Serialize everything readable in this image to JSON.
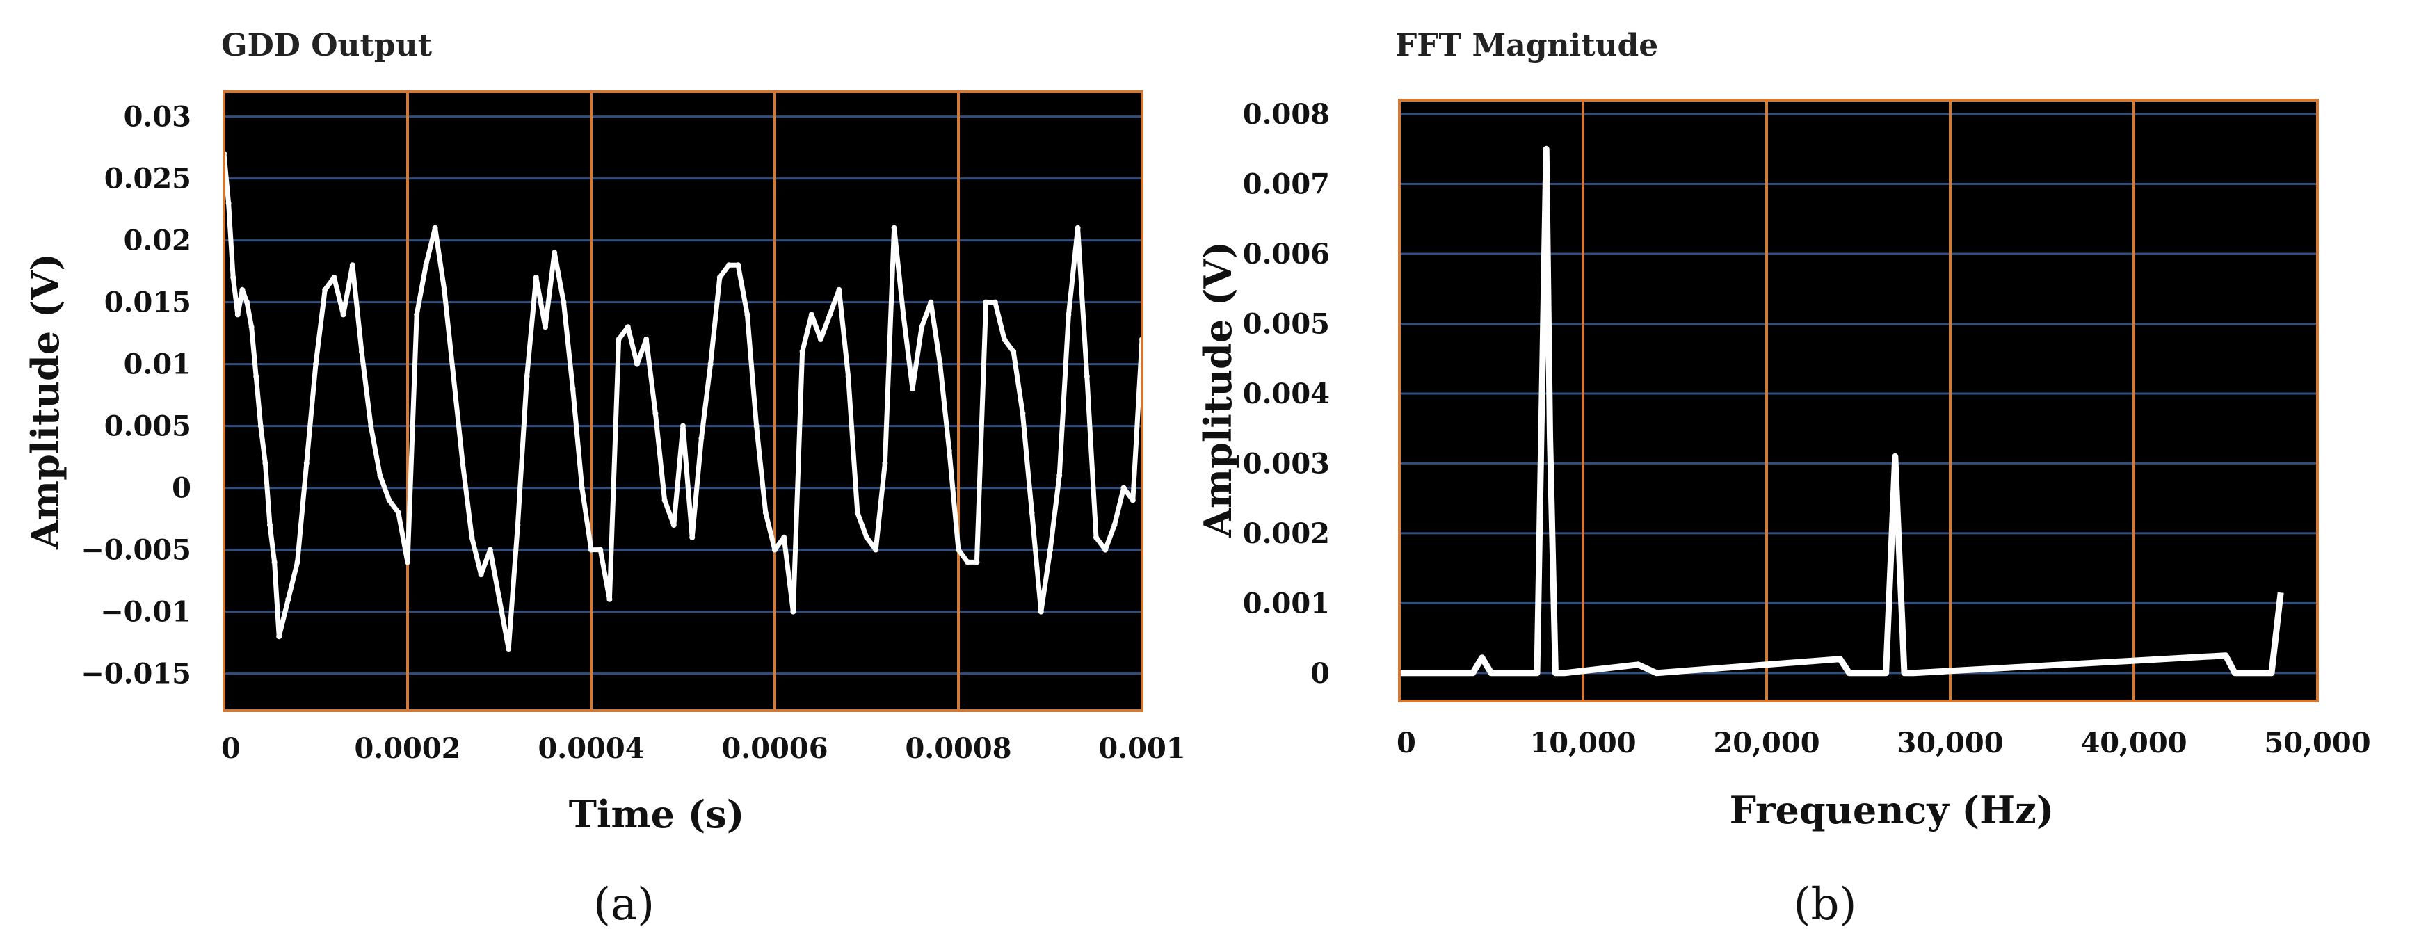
{
  "colors": {
    "background": "#000000",
    "grid": "#2f4f80",
    "frame": "#d07a3a",
    "trace": "#ffffff"
  },
  "chart_data": [
    {
      "type": "line",
      "caption": "(a)",
      "title": "GDD Output",
      "xlabel": "Time (s)",
      "ylabel": "Amplitude (V)",
      "xlim": [
        0,
        0.001
      ],
      "ylim": [
        -0.018,
        0.032
      ],
      "xticks": [
        0,
        0.0002,
        0.0004,
        0.0006,
        0.0008,
        0.001
      ],
      "xtick_labels": [
        "0",
        "0.0002",
        "0.0004",
        "0.0006",
        "0.0008",
        "0.001"
      ],
      "yticks": [
        0.03,
        0.025,
        0.02,
        0.015,
        0.01,
        0.005,
        0,
        -0.005,
        -0.01,
        -0.015
      ],
      "ytick_labels": [
        "0.03",
        "0.025",
        "0.02",
        "0.015",
        "0.01",
        "0.005",
        "0",
        "−0.005",
        "−0.01",
        "−0.015"
      ],
      "grid": true,
      "series": [
        {
          "x": [
            0,
            5e-06,
            1e-05,
            1.5e-05,
            2e-05,
            2.5e-05,
            3e-05,
            3.5e-05,
            4e-05,
            4.5e-05,
            5e-05,
            5.5e-05,
            6e-05,
            7e-05,
            8e-05,
            9e-05,
            0.0001,
            0.00011,
            0.00012,
            0.00013,
            0.00014,
            0.00015,
            0.00016,
            0.00017,
            0.00018,
            0.00019,
            0.0002,
            0.00021,
            0.00022,
            0.00023,
            0.00024,
            0.00025,
            0.00026,
            0.00027,
            0.00028,
            0.00029,
            0.0003,
            0.00031,
            0.00032,
            0.00033,
            0.00034,
            0.00035,
            0.00036,
            0.00037,
            0.00038,
            0.00039,
            0.0004,
            0.00041,
            0.00042,
            0.00043,
            0.00044,
            0.00045,
            0.00046,
            0.00047,
            0.00048,
            0.00049,
            0.0005,
            0.00051,
            0.00052,
            0.00053,
            0.00054,
            0.00055,
            0.00056,
            0.00057,
            0.00058,
            0.00059,
            0.0006,
            0.00061,
            0.00062,
            0.00063,
            0.00064,
            0.00065,
            0.00066,
            0.00067,
            0.00068,
            0.00069,
            0.0007,
            0.00071,
            0.00072,
            0.00073,
            0.00074,
            0.00075,
            0.00076,
            0.00077,
            0.00078,
            0.00079,
            0.0008,
            0.00081,
            0.00082,
            0.00083,
            0.00084,
            0.00085,
            0.00086,
            0.00087,
            0.00088,
            0.00089,
            0.0009,
            0.00091,
            0.00092,
            0.00093,
            0.00094,
            0.00095,
            0.00096,
            0.00097,
            0.00098,
            0.00099,
            0.001
          ],
          "y": [
            0.027,
            0.023,
            0.017,
            0.014,
            0.016,
            0.015,
            0.013,
            0.009,
            0.005,
            0.002,
            -0.003,
            -0.006,
            -0.012,
            -0.009,
            -0.006,
            0.002,
            0.01,
            0.016,
            0.017,
            0.014,
            0.018,
            0.011,
            0.005,
            0.001,
            -0.001,
            -0.002,
            -0.006,
            0.014,
            0.018,
            0.021,
            0.016,
            0.009,
            0.002,
            -0.004,
            -0.007,
            -0.005,
            -0.009,
            -0.013,
            -0.003,
            0.009,
            0.017,
            0.013,
            0.019,
            0.015,
            0.008,
            0.0,
            -0.005,
            -0.005,
            -0.009,
            0.012,
            0.013,
            0.01,
            0.012,
            0.006,
            -0.001,
            -0.003,
            0.005,
            -0.004,
            0.004,
            0.01,
            0.017,
            0.018,
            0.018,
            0.014,
            0.005,
            -0.002,
            -0.005,
            -0.004,
            -0.01,
            0.011,
            0.014,
            0.012,
            0.014,
            0.016,
            0.009,
            -0.002,
            -0.004,
            -0.005,
            0.002,
            0.021,
            0.014,
            0.008,
            0.013,
            0.015,
            0.01,
            0.003,
            -0.005,
            -0.006,
            -0.006,
            0.015,
            0.015,
            0.012,
            0.011,
            0.006,
            -0.002,
            -0.01,
            -0.005,
            0.001,
            0.014,
            0.021,
            0.009,
            -0.004,
            -0.005,
            -0.003,
            0.0,
            -0.001,
            0.012
          ]
        }
      ]
    },
    {
      "type": "line",
      "caption": "(b)",
      "title": "FFT Magnitude",
      "xlabel": "Frequency (Hz)",
      "ylabel": "Amplitude (V)",
      "xlim": [
        0,
        50000
      ],
      "ylim": [
        -0.0004,
        0.0082
      ],
      "xticks": [
        0,
        10000,
        20000,
        30000,
        40000,
        50000
      ],
      "xtick_labels": [
        "0",
        "10,000",
        "20,000",
        "30,000",
        "40,000",
        "50,000"
      ],
      "yticks": [
        0.008,
        0.007,
        0.006,
        0.005,
        0.004,
        0.003,
        0.002,
        0.001,
        0
      ],
      "ytick_labels": [
        "0.008",
        "0.007",
        "0.006",
        "0.005",
        "0.004",
        "0.003",
        "0.002",
        "0.001",
        "0"
      ],
      "grid": true,
      "series": [
        {
          "x": [
            0,
            4000,
            4500,
            5000,
            7500,
            8000,
            8200,
            8500,
            9000,
            13000,
            14000,
            24000,
            24500,
            26500,
            27000,
            27500,
            28000,
            45000,
            45500,
            47500,
            48000
          ],
          "y": [
            0,
            0,
            0.00022,
            0,
            0,
            0.0075,
            0.0034,
            0,
            0,
            0.00012,
            0,
            0.0002,
            0,
            0,
            0.0031,
            0,
            0,
            0.00025,
            0,
            0,
            0.00115
          ]
        }
      ]
    }
  ]
}
